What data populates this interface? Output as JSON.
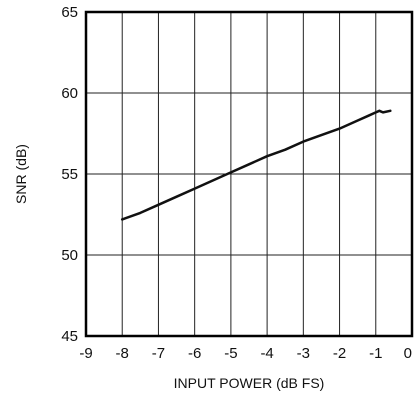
{
  "chart_data": {
    "type": "line",
    "title": "",
    "xlabel": "INPUT POWER (dB FS)",
    "ylabel": "SNR (dB)",
    "xlim": [
      -9,
      0
    ],
    "ylim": [
      45,
      65
    ],
    "xticks": [
      -9,
      -8,
      -7,
      -6,
      -5,
      -4,
      -3,
      -2,
      -1,
      0
    ],
    "yticks": [
      45,
      50,
      55,
      60,
      65
    ],
    "grid": true,
    "legend": "none",
    "line_color": "#111111",
    "series": [
      {
        "x": [
          -8,
          -7.5,
          -7,
          -6.5,
          -6,
          -5.5,
          -5,
          -4.5,
          -4,
          -3.5,
          -3,
          -2.5,
          -2,
          -1.5,
          -1.2,
          -1,
          -0.9,
          -0.8,
          -0.6
        ],
        "y": [
          52.2,
          52.6,
          53.1,
          53.6,
          54.1,
          54.6,
          55.1,
          55.6,
          56.1,
          56.5,
          57.0,
          57.4,
          57.8,
          58.3,
          58.6,
          58.8,
          58.9,
          58.8,
          58.9
        ]
      }
    ]
  }
}
